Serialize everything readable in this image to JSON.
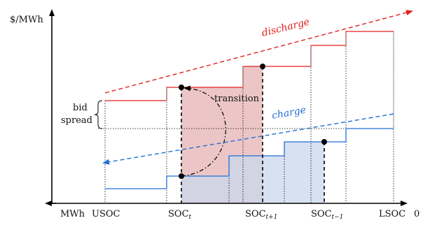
{
  "axes": {
    "y_unit": "$/MWh",
    "x_unit": "MWh",
    "x_labels": {
      "usoc": "USOC",
      "soc_t_base": "SOC",
      "soc_t_sub": "t",
      "soc_t1_base": "SOC",
      "soc_t1_sub": "t+1",
      "soc_tm1_base": "SOC",
      "soc_tm1_sub": "t−1",
      "lsoc": "LSOC",
      "zero": "0"
    }
  },
  "annotations": {
    "discharge": "discharge",
    "charge": "charge",
    "transition": "transition",
    "bid_line1": "bid",
    "bid_line2": "spread"
  },
  "colors": {
    "discharge": "#e0201c",
    "charge": "#1f6fd6",
    "transition_fill": "#e9bcbc",
    "charge_fill": "#c9d7ec",
    "axis": "#000000"
  }
}
